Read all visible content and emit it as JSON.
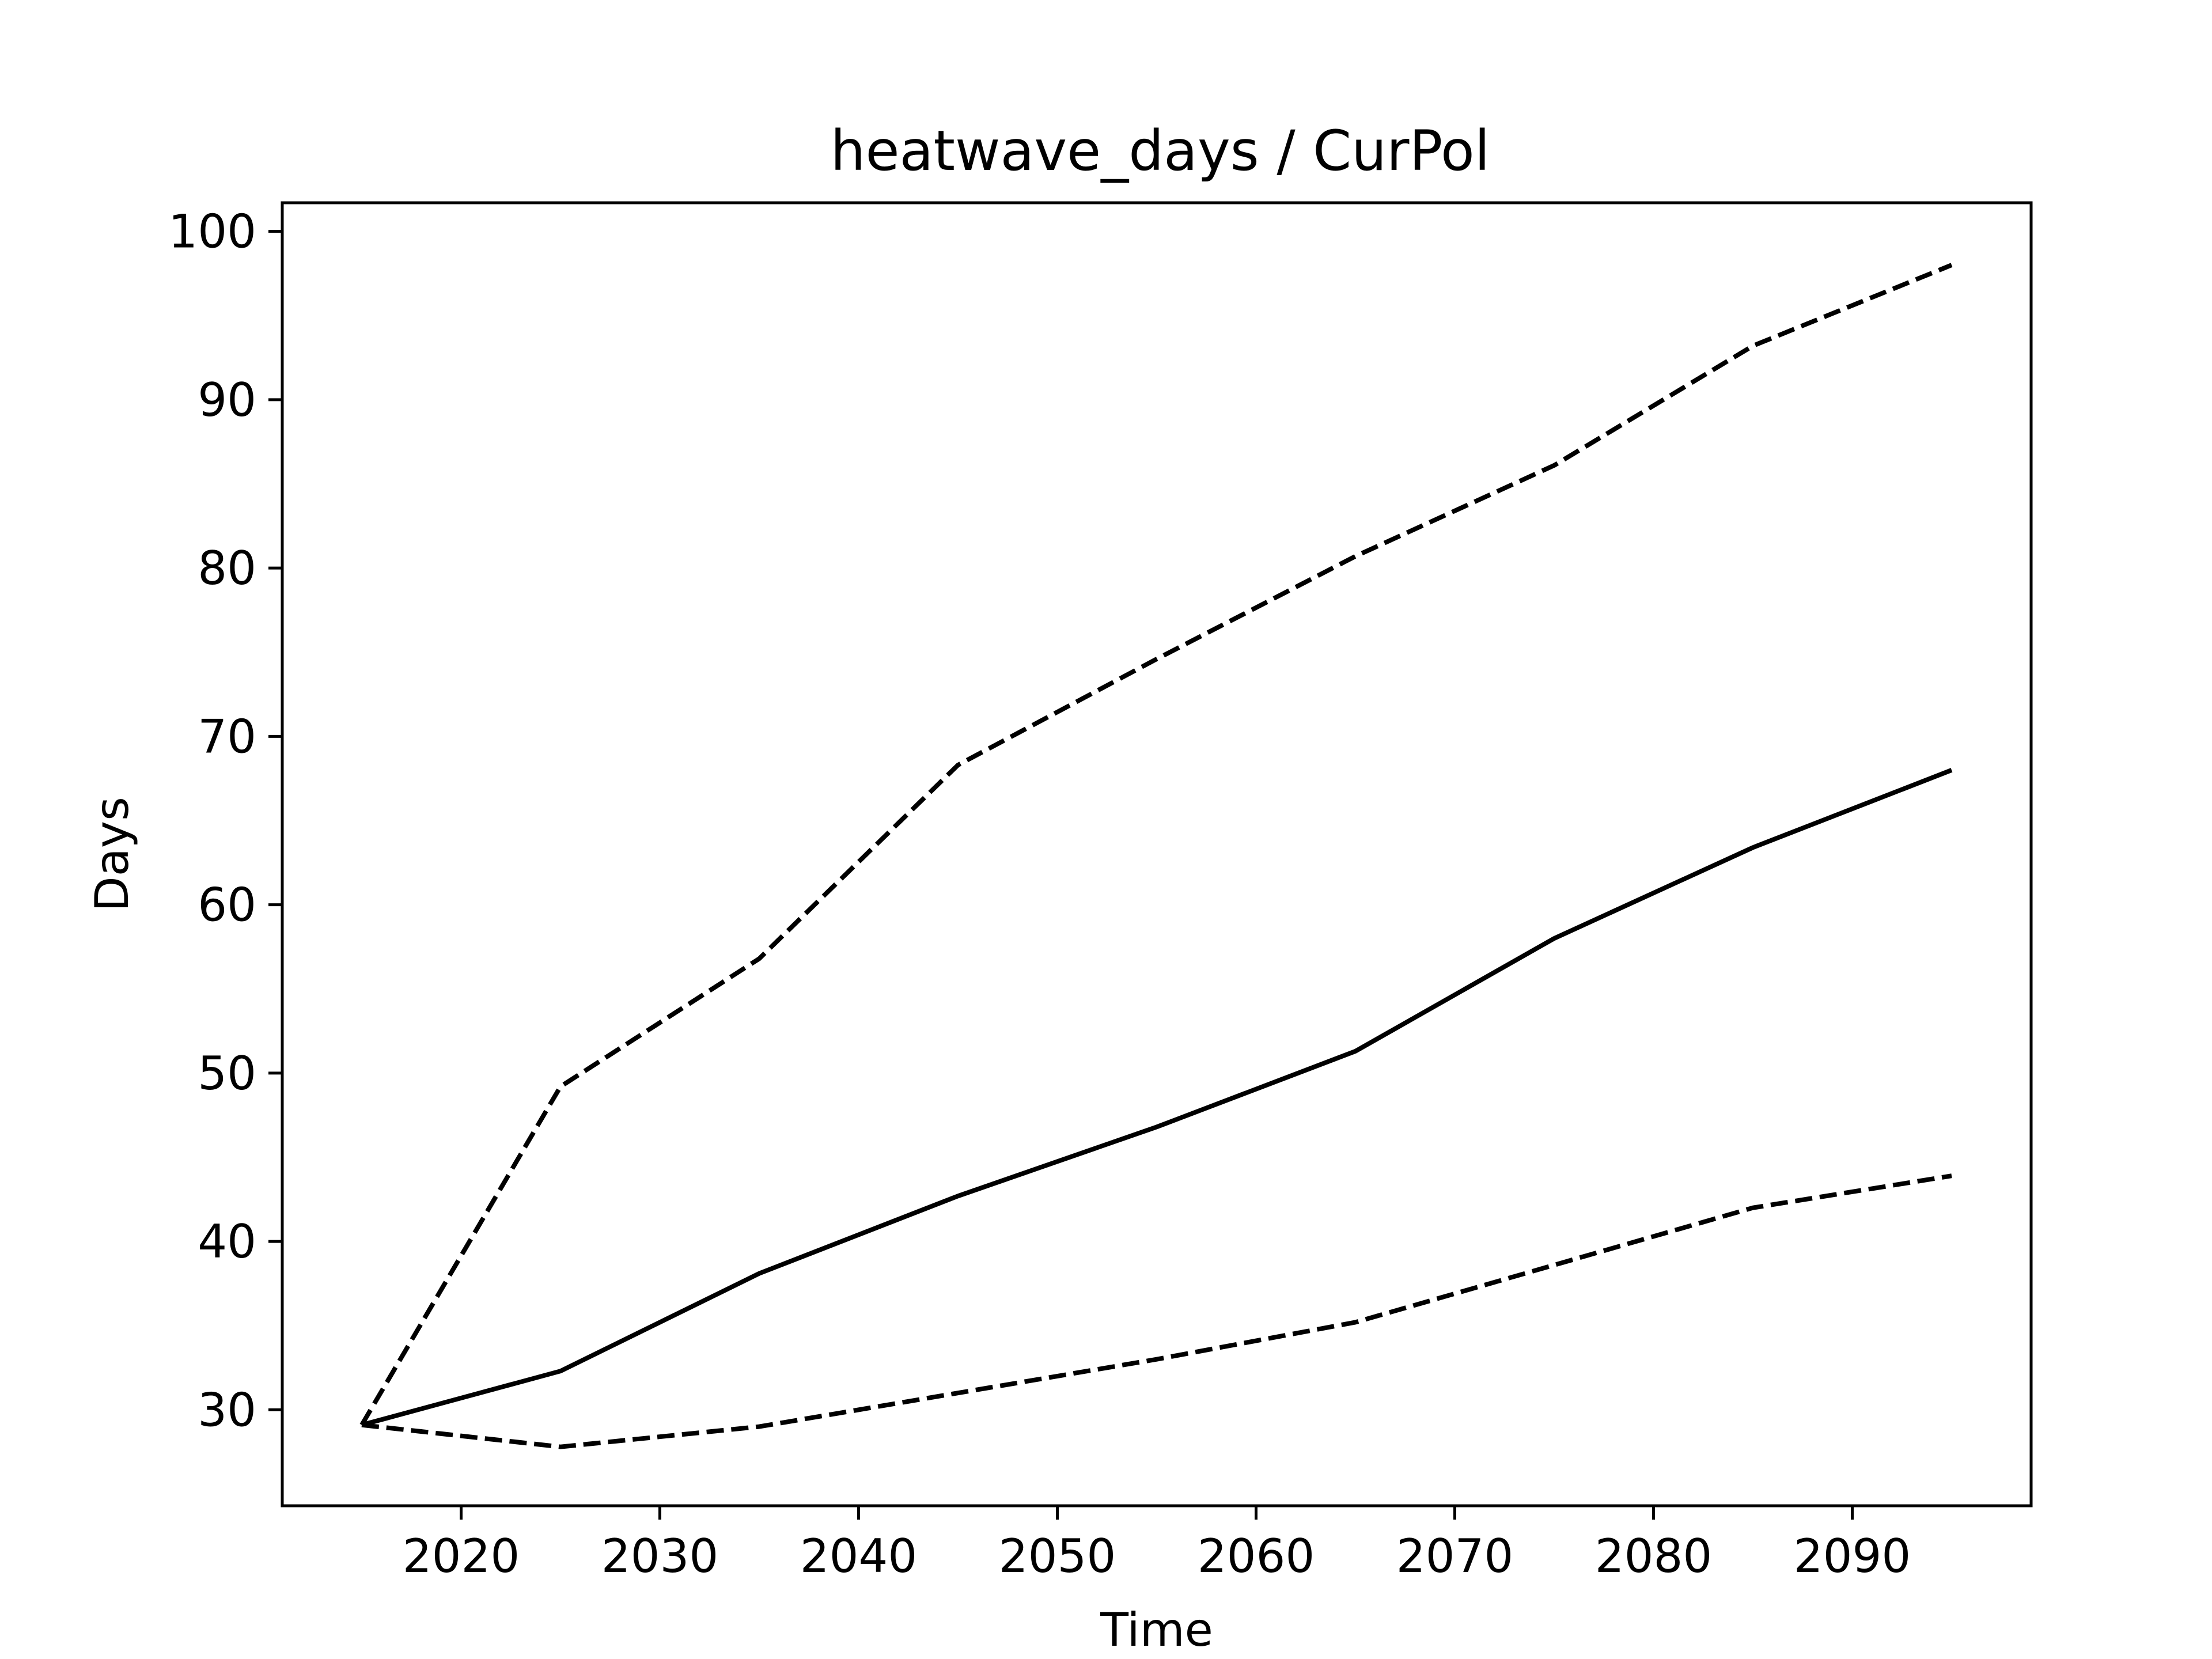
{
  "chart_data": {
    "type": "line",
    "title": "heatwave_days / CurPol",
    "xlabel": "Time",
    "ylabel": "Days",
    "xlim": [
      2011,
      2099
    ],
    "ylim": [
      24.3,
      101.7
    ],
    "x_ticks": [
      2020,
      2030,
      2040,
      2050,
      2060,
      2070,
      2080,
      2090
    ],
    "y_ticks": [
      30,
      40,
      50,
      60,
      70,
      80,
      90,
      100
    ],
    "grid": false,
    "legend": "none",
    "x": [
      2015,
      2025,
      2035,
      2045,
      2055,
      2065,
      2075,
      2085,
      2095
    ],
    "series": [
      {
        "style": "dashed",
        "color": "#000000",
        "values": [
          29.1,
          49.2,
          56.8,
          68.3,
          74.6,
          80.7,
          86.1,
          93.2,
          98.0
        ]
      },
      {
        "style": "solid",
        "color": "#000000",
        "values": [
          29.1,
          32.3,
          38.1,
          42.7,
          46.8,
          51.3,
          58.0,
          63.4,
          68.0
        ]
      },
      {
        "style": "dashed",
        "color": "#000000",
        "values": [
          29.1,
          27.8,
          29.0,
          31.0,
          33.0,
          35.2,
          38.6,
          42.0,
          43.9
        ]
      }
    ]
  }
}
